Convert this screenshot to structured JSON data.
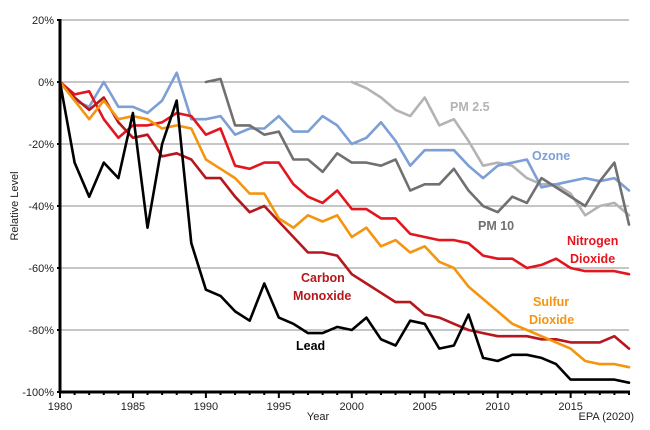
{
  "chart_data": {
    "type": "line",
    "title": "",
    "xlabel": "Year",
    "ylabel": "Relative Level",
    "source_note": "EPA (2020)",
    "xlim": [
      1980,
      2019
    ],
    "ylim": [
      -100,
      20
    ],
    "grid": true,
    "x_ticks": [
      "1980",
      "1985",
      "1990",
      "1995",
      "2000",
      "2005",
      "2010",
      "2015"
    ],
    "y_ticks": [
      "20%",
      "0%",
      "-20%",
      "-40%",
      "-60%",
      "-80%",
      "-100%"
    ],
    "series": [
      {
        "name": "PM 2.5",
        "color": "#b3b3b3",
        "x": [
          2000,
          2001,
          2002,
          2003,
          2004,
          2005,
          2006,
          2007,
          2008,
          2009,
          2010,
          2011,
          2012,
          2013,
          2014,
          2015,
          2016,
          2017,
          2018,
          2019
        ],
        "values": [
          0,
          -2,
          -5,
          -9,
          -11,
          -5,
          -14,
          -12,
          -19,
          -27,
          -26,
          -27,
          -31,
          -33,
          -33,
          -36,
          -43,
          -40,
          -39,
          -43
        ]
      },
      {
        "name": "Ozone",
        "color": "#7c9fd6",
        "x": [
          1980,
          1981,
          1982,
          1983,
          1984,
          1985,
          1986,
          1987,
          1988,
          1989,
          1990,
          1991,
          1992,
          1993,
          1994,
          1995,
          1996,
          1997,
          1998,
          1999,
          2000,
          2001,
          2002,
          2003,
          2004,
          2005,
          2006,
          2007,
          2008,
          2009,
          2010,
          2011,
          2012,
          2013,
          2014,
          2015,
          2016,
          2017,
          2018,
          2019
        ],
        "values": [
          0,
          -6,
          -8,
          0,
          -8,
          -8,
          -10,
          -6,
          3,
          -12,
          -12,
          -11,
          -17,
          -15,
          -15,
          -11,
          -16,
          -16,
          -11,
          -14,
          -20,
          -18,
          -13,
          -19,
          -27,
          -22,
          -22,
          -22,
          -27,
          -31,
          -27,
          -26,
          -25,
          -34,
          -33,
          -32,
          -31,
          -32,
          -31,
          -35
        ]
      },
      {
        "name": "PM 10",
        "color": "#707070",
        "x": [
          1990,
          1991,
          1992,
          1993,
          1994,
          1995,
          1996,
          1997,
          1998,
          1999,
          2000,
          2001,
          2002,
          2003,
          2004,
          2005,
          2006,
          2007,
          2008,
          2009,
          2010,
          2011,
          2012,
          2013,
          2014,
          2015,
          2016,
          2017,
          2018,
          2019
        ],
        "values": [
          0,
          1,
          -14,
          -14,
          -17,
          -16,
          -25,
          -25,
          -29,
          -23,
          -26,
          -26,
          -27,
          -25,
          -35,
          -33,
          -33,
          -28,
          -35,
          -40,
          -42,
          -37,
          -39,
          -31,
          -34,
          -37,
          -40,
          -32,
          -26,
          -46
        ]
      },
      {
        "name": "Nitrogen Dioxide",
        "color": "#e3161f",
        "x": [
          1980,
          1981,
          1982,
          1983,
          1984,
          1985,
          1986,
          1987,
          1988,
          1989,
          1990,
          1991,
          1992,
          1993,
          1994,
          1995,
          1996,
          1997,
          1998,
          1999,
          2000,
          2001,
          2002,
          2003,
          2004,
          2005,
          2006,
          2007,
          2008,
          2009,
          2010,
          2011,
          2012,
          2013,
          2014,
          2015,
          2016,
          2017,
          2018,
          2019
        ],
        "values": [
          0,
          -4,
          -3,
          -12,
          -18,
          -14,
          -14,
          -13,
          -10,
          -11,
          -17,
          -15,
          -27,
          -28,
          -26,
          -26,
          -33,
          -37,
          -39,
          -35,
          -41,
          -41,
          -44,
          -44,
          -49,
          -50,
          -51,
          -51,
          -52,
          -56,
          -57,
          -57,
          -60,
          -59,
          -57,
          -60,
          -61,
          -61,
          -61,
          -62
        ]
      },
      {
        "name": "Carbon Monoxide",
        "color": "#b5171c",
        "x": [
          1980,
          1981,
          1982,
          1983,
          1984,
          1985,
          1986,
          1987,
          1988,
          1989,
          1990,
          1991,
          1992,
          1993,
          1994,
          1995,
          1996,
          1997,
          1998,
          1999,
          2000,
          2001,
          2002,
          2003,
          2004,
          2005,
          2006,
          2007,
          2008,
          2009,
          2010,
          2011,
          2012,
          2013,
          2014,
          2015,
          2016,
          2017,
          2018,
          2019
        ],
        "values": [
          0,
          -5,
          -9,
          -5,
          -13,
          -18,
          -17,
          -24,
          -23,
          -25,
          -31,
          -31,
          -37,
          -42,
          -40,
          -45,
          -50,
          -55,
          -55,
          -56,
          -62,
          -65,
          -68,
          -71,
          -71,
          -75,
          -76,
          -78,
          -80,
          -81,
          -82,
          -82,
          -82,
          -83,
          -83,
          -84,
          -84,
          -84,
          -82,
          -86
        ]
      },
      {
        "name": "Sulfur Dioxide",
        "color": "#f5950f",
        "x": [
          1980,
          1981,
          1982,
          1983,
          1984,
          1985,
          1986,
          1987,
          1988,
          1989,
          1990,
          1991,
          1992,
          1993,
          1994,
          1995,
          1996,
          1997,
          1998,
          1999,
          2000,
          2001,
          2002,
          2003,
          2004,
          2005,
          2006,
          2007,
          2008,
          2009,
          2010,
          2011,
          2012,
          2013,
          2014,
          2015,
          2016,
          2017,
          2018,
          2019
        ],
        "values": [
          0,
          -6,
          -12,
          -6,
          -12,
          -11,
          -12,
          -15,
          -14,
          -15,
          -25,
          -28,
          -31,
          -36,
          -36,
          -44,
          -47,
          -43,
          -45,
          -43,
          -50,
          -47,
          -53,
          -51,
          -55,
          -53,
          -58,
          -60,
          -66,
          -70,
          -74,
          -78,
          -80,
          -82,
          -84,
          -86,
          -90,
          -91,
          -91,
          -92
        ]
      },
      {
        "name": "Lead",
        "color": "#000000",
        "x": [
          1980,
          1981,
          1982,
          1983,
          1984,
          1985,
          1986,
          1987,
          1988,
          1989,
          1990,
          1991,
          1992,
          1993,
          1994,
          1995,
          1996,
          1997,
          1998,
          1999,
          2000,
          2001,
          2002,
          2003,
          2004,
          2005,
          2006,
          2007,
          2008,
          2009,
          2010,
          2011,
          2012,
          2013,
          2014,
          2015,
          2016,
          2017,
          2018,
          2019
        ],
        "values": [
          0,
          -26,
          -37,
          -26,
          -31,
          -10,
          -47,
          -20,
          -6,
          -52,
          -67,
          -69,
          -74,
          -77,
          -65,
          -76,
          -78,
          -81,
          -81,
          -79,
          -80,
          -76,
          -83,
          -85,
          -77,
          -78,
          -86,
          -85,
          -75,
          -89,
          -90,
          -88,
          -88,
          -89,
          -91,
          -96,
          -96,
          -96,
          -96,
          -97
        ]
      }
    ],
    "annotations": [
      {
        "text": "PM 2.5",
        "series": "PM 2.5"
      },
      {
        "text": "Ozone",
        "series": "Ozone"
      },
      {
        "text": "PM 10",
        "series": "PM 10"
      },
      {
        "text": "Nitrogen",
        "series": "Nitrogen Dioxide"
      },
      {
        "text": "Dioxide",
        "series": "Nitrogen Dioxide"
      },
      {
        "text": "Carbon",
        "series": "Carbon Monoxide"
      },
      {
        "text": "Monoxide",
        "series": "Carbon Monoxide"
      },
      {
        "text": "Sulfur",
        "series": "Sulfur Dioxide"
      },
      {
        "text": "Dioxide",
        "series": "Sulfur Dioxide"
      },
      {
        "text": "Lead",
        "series": "Lead"
      }
    ]
  }
}
